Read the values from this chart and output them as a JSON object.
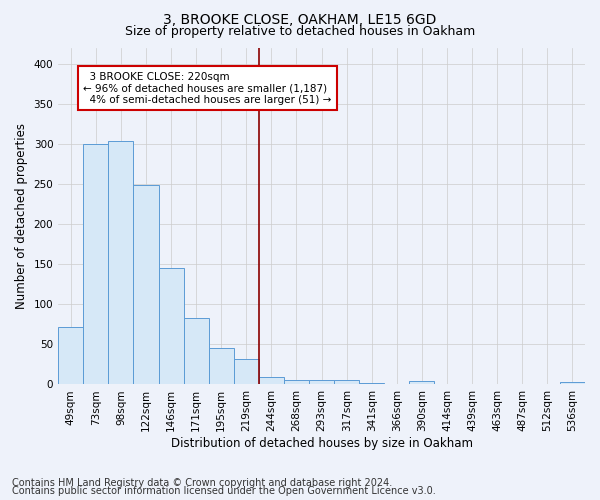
{
  "title1": "3, BROOKE CLOSE, OAKHAM, LE15 6GD",
  "title2": "Size of property relative to detached houses in Oakham",
  "xlabel": "Distribution of detached houses by size in Oakham",
  "ylabel": "Number of detached properties",
  "footnote1": "Contains HM Land Registry data © Crown copyright and database right 2024.",
  "footnote2": "Contains public sector information licensed under the Open Government Licence v3.0.",
  "categories": [
    "49sqm",
    "73sqm",
    "98sqm",
    "122sqm",
    "146sqm",
    "171sqm",
    "195sqm",
    "219sqm",
    "244sqm",
    "268sqm",
    "293sqm",
    "317sqm",
    "341sqm",
    "366sqm",
    "390sqm",
    "414sqm",
    "439sqm",
    "463sqm",
    "487sqm",
    "512sqm",
    "536sqm"
  ],
  "values": [
    72,
    300,
    304,
    249,
    145,
    83,
    45,
    32,
    9,
    6,
    6,
    6,
    2,
    0,
    4,
    0,
    0,
    0,
    0,
    0,
    3
  ],
  "bar_color": "#d6e8f7",
  "bar_edge_color": "#5b9bd5",
  "vline_x_index": 7,
  "vline_color": "#8b0000",
  "annotation_text": "  3 BROOKE CLOSE: 220sqm\n← 96% of detached houses are smaller (1,187)\n  4% of semi-detached houses are larger (51) →",
  "annotation_box_color": "#ffffff",
  "annotation_box_edge": "#cc0000",
  "ylim": [
    0,
    420
  ],
  "yticks": [
    0,
    50,
    100,
    150,
    200,
    250,
    300,
    350,
    400
  ],
  "background_color": "#eef2fa",
  "plot_bg_color": "#eef2fa",
  "grid_color": "#cccccc",
  "title1_fontsize": 10,
  "title2_fontsize": 9,
  "xlabel_fontsize": 8.5,
  "ylabel_fontsize": 8.5,
  "tick_fontsize": 7.5,
  "footnote_fontsize": 7
}
